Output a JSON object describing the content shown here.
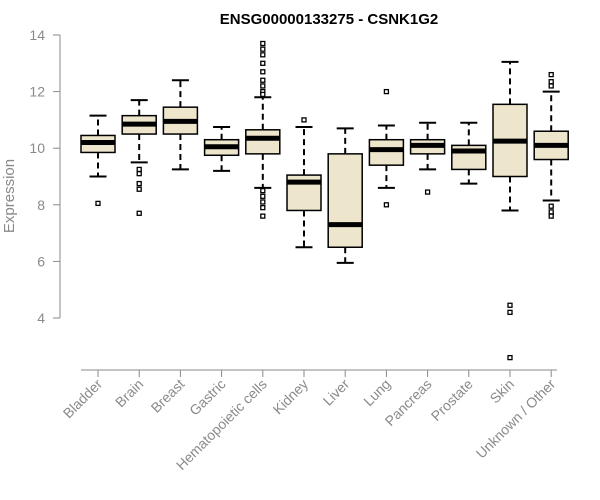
{
  "chart_data": {
    "type": "boxplot",
    "title": "ENSG00000133275 - CSNK1G2",
    "xlabel": "",
    "ylabel": "Expression",
    "ylim": [
      2.3,
      14.3
    ],
    "yticks": [
      4,
      6,
      8,
      10,
      12,
      14
    ],
    "box_fill": "#ede5cc",
    "box_stroke": "#000000",
    "axis_color": "#8a8a8a",
    "categories": [
      "Bladder",
      "Brain",
      "Breast",
      "Gastric",
      "Hematopoietic cells",
      "Kidney",
      "Liver",
      "Lung",
      "Pancreas",
      "Prostate",
      "Skin",
      "Unknown / Other"
    ],
    "boxes": [
      {
        "min": 9.0,
        "q1": 9.85,
        "median": 10.2,
        "q3": 10.45,
        "max": 11.15,
        "outliers": [
          8.05
        ]
      },
      {
        "min": 9.5,
        "q1": 10.5,
        "median": 10.85,
        "q3": 11.15,
        "max": 11.7,
        "outliers": [
          9.25,
          9.1,
          8.75,
          8.55,
          7.7
        ]
      },
      {
        "min": 9.25,
        "q1": 10.5,
        "median": 10.95,
        "q3": 11.45,
        "max": 12.4,
        "outliers": []
      },
      {
        "min": 9.2,
        "q1": 9.75,
        "median": 10.05,
        "q3": 10.3,
        "max": 10.75,
        "outliers": []
      },
      {
        "min": 8.6,
        "q1": 9.8,
        "median": 10.35,
        "q3": 10.65,
        "max": 11.8,
        "outliers": [
          13.7,
          13.5,
          13.3,
          13.0,
          12.7,
          12.4,
          12.2,
          12.0,
          11.9,
          8.5,
          8.3,
          8.1,
          7.9,
          7.6
        ]
      },
      {
        "min": 6.5,
        "q1": 7.8,
        "median": 8.8,
        "q3": 9.05,
        "max": 10.75,
        "outliers": [
          11.0
        ]
      },
      {
        "min": 5.95,
        "q1": 6.5,
        "median": 7.3,
        "q3": 9.8,
        "max": 10.7,
        "outliers": []
      },
      {
        "min": 8.6,
        "q1": 9.4,
        "median": 9.95,
        "q3": 10.3,
        "max": 10.8,
        "outliers": [
          12.0,
          8.0
        ]
      },
      {
        "min": 9.25,
        "q1": 9.8,
        "median": 10.1,
        "q3": 10.3,
        "max": 10.9,
        "outliers": [
          8.45
        ]
      },
      {
        "min": 8.75,
        "q1": 9.25,
        "median": 9.9,
        "q3": 10.1,
        "max": 10.9,
        "outliers": []
      },
      {
        "min": 7.8,
        "q1": 9.0,
        "median": 10.25,
        "q3": 11.55,
        "max": 13.05,
        "outliers": [
          4.45,
          4.2,
          2.6
        ]
      },
      {
        "min": 8.15,
        "q1": 9.6,
        "median": 10.1,
        "q3": 10.6,
        "max": 12.0,
        "outliers": [
          12.6,
          12.35,
          12.2,
          7.95,
          7.75,
          7.6
        ]
      }
    ]
  }
}
